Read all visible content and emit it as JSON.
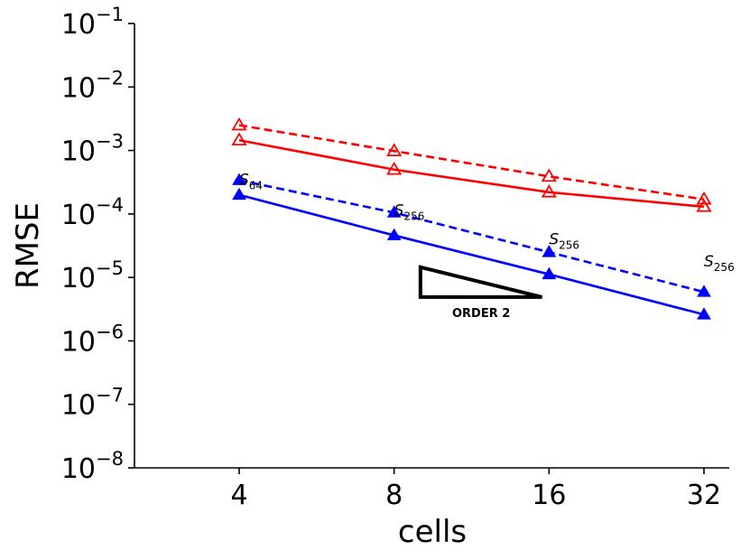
{
  "chart_data": {
    "type": "line",
    "xscale": "log2",
    "yscale": "log10",
    "x": [
      4,
      8,
      16,
      32
    ],
    "xticklabels": [
      "4",
      "8",
      "16",
      "32"
    ],
    "xlabel": "cells",
    "ylabel": "RMSE",
    "ylim": [
      1e-08,
      0.1
    ],
    "yticks": [
      {
        "base": "10",
        "exp": "−8"
      },
      {
        "base": "10",
        "exp": "−7"
      },
      {
        "base": "10",
        "exp": "−6"
      },
      {
        "base": "10",
        "exp": "−5"
      },
      {
        "base": "10",
        "exp": "−4"
      },
      {
        "base": "10",
        "exp": "−3"
      },
      {
        "base": "10",
        "exp": "−2"
      },
      {
        "base": "10",
        "exp": "−1"
      }
    ],
    "series": [
      {
        "name": "red-dashed",
        "color": "#ff0000",
        "dash": true,
        "marker": "open-triangle",
        "values": [
          0.0025,
          0.00098,
          0.00039,
          0.00017
        ]
      },
      {
        "name": "red-solid",
        "color": "#ff0000",
        "dash": false,
        "marker": "open-triangle",
        "values": [
          0.00145,
          0.0005,
          0.00022,
          0.00013
        ]
      },
      {
        "name": "blue-dashed",
        "color": "#0000ff",
        "dash": true,
        "marker": "filled-triangle",
        "values": [
          0.00034,
          0.000105,
          2.5e-05,
          5.9e-06
        ]
      },
      {
        "name": "blue-solid",
        "color": "#0000ff",
        "dash": false,
        "marker": "filled-triangle",
        "values": [
          0.0002,
          4.6e-05,
          1.12e-05,
          2.6e-06
        ]
      }
    ],
    "annotations": [
      {
        "base": "S",
        "sub": "64",
        "x": 4,
        "y": 0.00029
      },
      {
        "base": "S",
        "sub": "256",
        "x": 8,
        "y": 9.5e-05
      },
      {
        "base": "S",
        "sub": "256",
        "x": 16,
        "y": 3.3e-05
      },
      {
        "base": "S",
        "sub": "256",
        "x": 32,
        "y": 1.5e-05
      }
    ],
    "order_triangle": {
      "label": "ORDER 2",
      "x_start": 9,
      "x_end": 15.5,
      "y_top": 1.45e-05,
      "y_bottom": 4.9e-06
    }
  }
}
